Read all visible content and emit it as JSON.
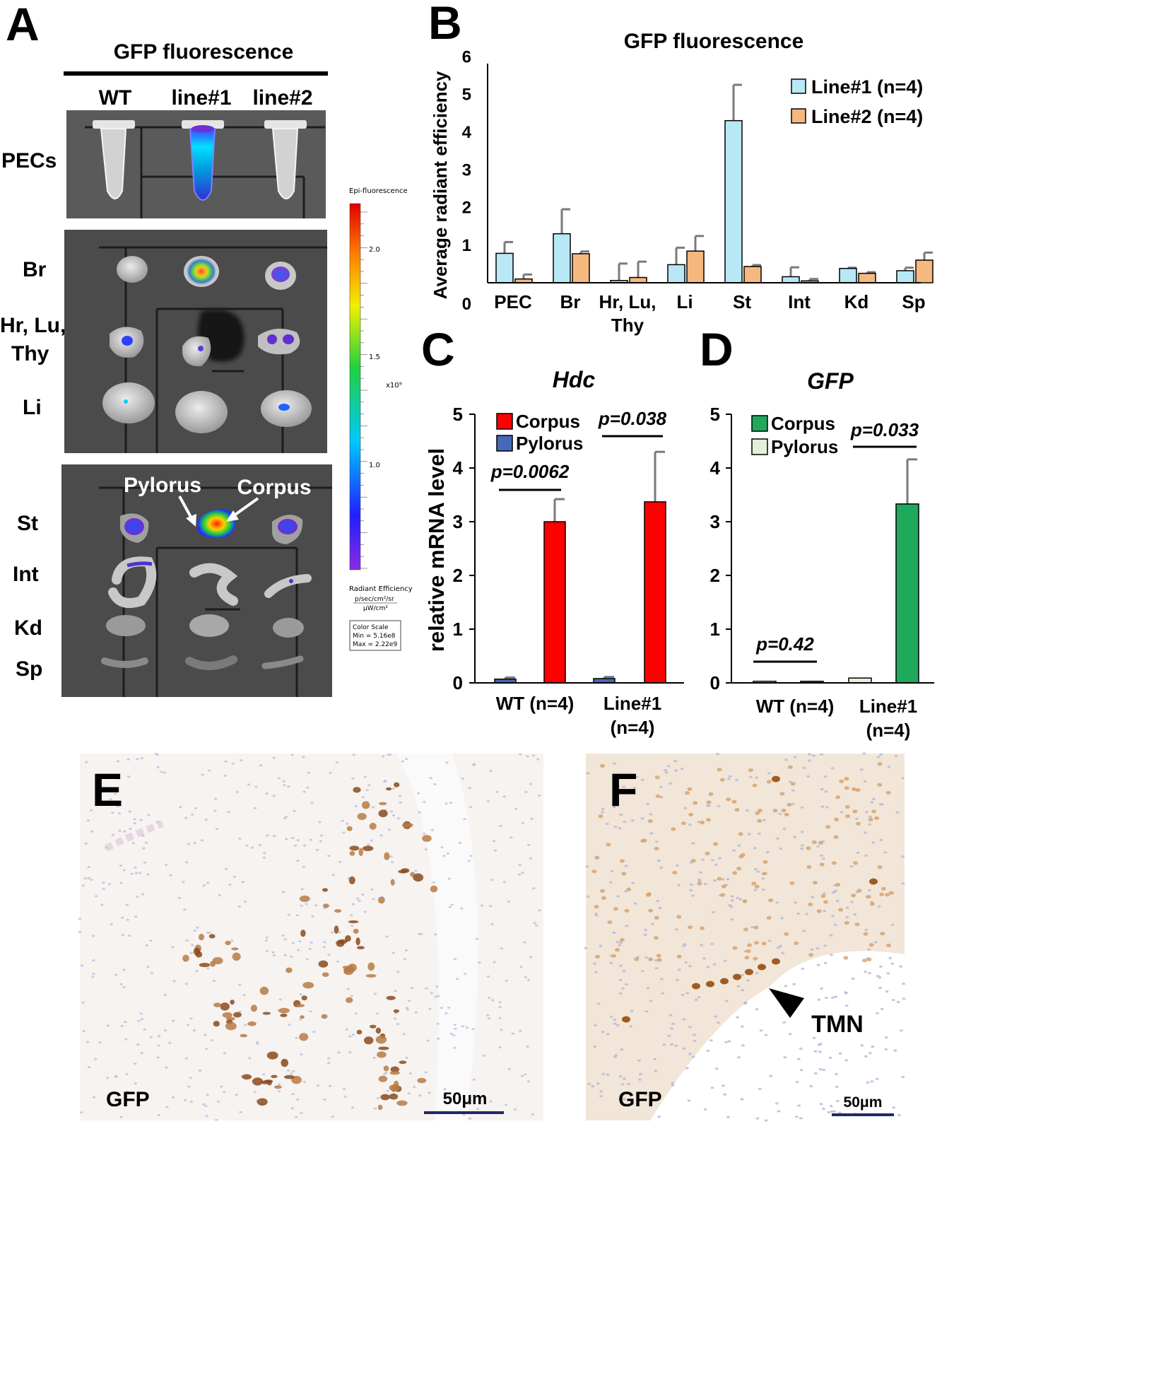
{
  "panel_letters": [
    "A",
    "B",
    "C",
    "D",
    "E",
    "F"
  ],
  "panel_a": {
    "title": "GFP fluorescence",
    "columns": [
      "WT",
      "line#1",
      "line#2"
    ],
    "row_labels": [
      "PECs",
      "Br",
      "Hr, Lu,",
      "Thy",
      "Li",
      "St",
      "Int",
      "Kd",
      "Sp"
    ],
    "annotations": {
      "pylorus": "Pylorus",
      "corpus": "Corpus"
    },
    "colorbar": {
      "title": "Epi-fluorescence",
      "ticks": [
        "2.0",
        "1.5",
        "1.0"
      ],
      "exponent": "x10⁹",
      "unit_title": "Radiant Efficiency",
      "unit_num": "p/sec/cm²/sr",
      "unit_den": "μW/cm²",
      "scale_title": "Color Scale",
      "scale_min": "Min = 5.16e8",
      "scale_max": "Max = 2.22e9"
    }
  },
  "panel_e": {
    "label": "GFP",
    "scalebar": "50μm"
  },
  "panel_f": {
    "label": "GFP",
    "scalebar": "50μm",
    "annotation": "TMN"
  },
  "chart_data": [
    {
      "panel": "B",
      "type": "bar",
      "title": "GFP fluorescence",
      "ylabel": "Average radiant efficiency",
      "xlabel": "",
      "categories": [
        "PEC",
        "Br",
        "Hr, Lu, Thy",
        "Li",
        "St",
        "Int",
        "Kd",
        "Sp"
      ],
      "category_lines": [
        [
          "PEC"
        ],
        [
          "Br"
        ],
        [
          "Hr, Lu,",
          "Thy"
        ],
        [
          "Li"
        ],
        [
          "St"
        ],
        [
          "Int"
        ],
        [
          "Kd"
        ],
        [
          "Sp"
        ]
      ],
      "series": [
        {
          "name": "Line#1 (n=4)",
          "color": "#b8e8f5",
          "values": [
            0.78,
            1.3,
            0.06,
            0.48,
            4.3,
            0.16,
            0.38,
            0.32
          ],
          "errors": [
            0.3,
            0.65,
            0.45,
            0.45,
            0.95,
            0.25,
            0.02,
            0.08
          ]
        },
        {
          "name": "Line#2 (n=4)",
          "color": "#f5b87f",
          "values": [
            0.1,
            0.77,
            0.14,
            0.84,
            0.43,
            0.05,
            0.25,
            0.6
          ],
          "errors": [
            0.12,
            0.06,
            0.42,
            0.4,
            0.04,
            0.05,
            0.03,
            0.2
          ]
        }
      ],
      "ylim": [
        0,
        6
      ],
      "yticks": [
        0,
        1,
        2,
        3,
        4,
        5,
        6
      ],
      "legend": "top-right",
      "grid": false
    },
    {
      "panel": "C",
      "type": "bar",
      "title": "Hdc",
      "ylabel": "relative mRNA level",
      "xlabel": "",
      "categories": [
        "WT (n=4)",
        "Line#1 (n=4)"
      ],
      "category_lines": [
        [
          "WT (n=4)"
        ],
        [
          "Line#1",
          "(n=4)"
        ]
      ],
      "series": [
        {
          "name": "Pylorus",
          "color": "#4668b8",
          "values": [
            0.07,
            0.08
          ],
          "errors": [
            0.03,
            0.03
          ]
        },
        {
          "name": "Corpus",
          "color": "#ff0000",
          "values": [
            3.0,
            3.37
          ],
          "errors": [
            0.42,
            0.93
          ]
        }
      ],
      "legend_order": [
        "Corpus",
        "Pylorus"
      ],
      "pvalues": [
        "p=0.0062",
        "p=0.038"
      ],
      "ylim": [
        0,
        5
      ],
      "yticks": [
        0,
        1,
        2,
        3,
        4,
        5
      ],
      "legend": "top-left",
      "grid": false
    },
    {
      "panel": "D",
      "type": "bar",
      "title": "GFP",
      "ylabel": "",
      "xlabel": "",
      "categories": [
        "WT (n=4)",
        "Line#1 (n=4)"
      ],
      "category_lines": [
        [
          "WT (n=4)"
        ],
        [
          "Line#1",
          "(n=4)"
        ]
      ],
      "series": [
        {
          "name": "Pylorus",
          "color": "#e3f0d9",
          "values": [
            0.03,
            0.09
          ],
          "errors": [
            0.0,
            0.0
          ]
        },
        {
          "name": "Corpus",
          "color": "#1fa95a",
          "values": [
            0.03,
            3.33
          ],
          "errors": [
            0.0,
            0.83
          ]
        }
      ],
      "legend_order": [
        "Corpus",
        "Pylorus"
      ],
      "pvalues": [
        "p=0.42",
        "p=0.033"
      ],
      "ylim": [
        0,
        5
      ],
      "yticks": [
        0,
        1,
        2,
        3,
        4,
        5
      ],
      "legend": "top-left",
      "grid": false
    }
  ]
}
